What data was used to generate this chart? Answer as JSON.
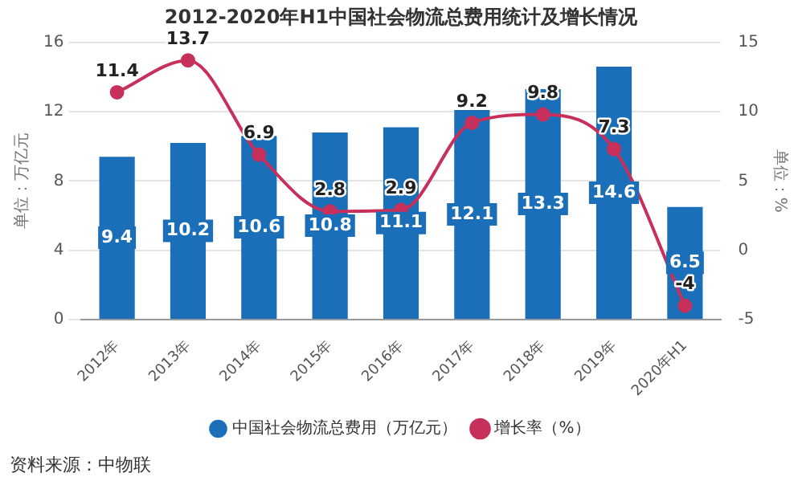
{
  "chart_data": {
    "type": "bar",
    "title": "2012-2020年H1中国社会物流总费用统计及增长情况",
    "categories": [
      "2012年",
      "2013年",
      "2014年",
      "2015年",
      "2016年",
      "2017年",
      "2018年",
      "2019年",
      "2020年H1"
    ],
    "series": [
      {
        "name": "中国社会物流总费用（万亿元）",
        "color": "#1a6fb8",
        "values": [
          9.4,
          10.2,
          10.6,
          10.8,
          11.1,
          12.1,
          13.3,
          14.6,
          6.5
        ]
      },
      {
        "name": "增长率（%）",
        "type": "line",
        "axis": "y2",
        "color": "#c8305c",
        "values": [
          11.4,
          13.7,
          6.9,
          2.8,
          2.9,
          9.2,
          9.8,
          7.3,
          -4
        ]
      }
    ],
    "ylabel": "单位：万亿元",
    "y2label": "单位：%",
    "ylim": [
      0,
      16
    ],
    "yticks": [
      0,
      4,
      8,
      12,
      16
    ],
    "y2lim": [
      -5,
      15
    ],
    "y2ticks": [
      -5,
      0,
      5,
      10,
      15
    ],
    "grid": "y",
    "legend": "bottom",
    "marker": "circle",
    "data_labels": true,
    "annotations": [
      "资料来源：中物联"
    ]
  }
}
